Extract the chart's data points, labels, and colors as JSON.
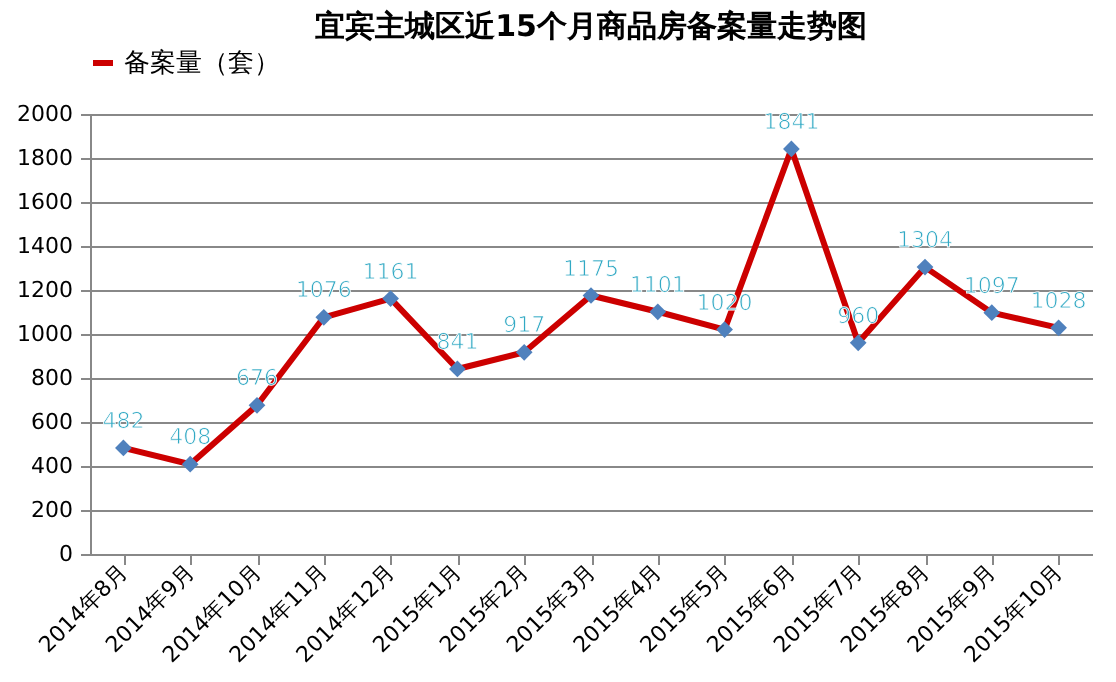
{
  "chart_data": {
    "type": "line",
    "title": "宜宾主城区近15个月商品房备案量走势图",
    "categories": [
      "2014年8月",
      "2014年9月",
      "2014年10月",
      "2014年11月",
      "2014年12月",
      "2015年1月",
      "2015年2月",
      "2015年3月",
      "2015年4月",
      "2015年5月",
      "2015年6月",
      "2015年7月",
      "2015年8月",
      "2015年9月",
      "2015年10月"
    ],
    "series": [
      {
        "name": "备案量（套）",
        "color": "#cc0000",
        "colors": [
          "#4f81bd",
          "#4f81bd",
          "#4f81bd",
          "#4f81bd",
          "#4f81bd",
          "#4f81bd",
          "#4f81bd",
          "#4f81bd",
          "#4f81bd",
          "#4f81bd",
          "#4f81bd",
          "#4f81bd",
          "#4f81bd",
          "#4f81bd",
          "#4f81bd"
        ],
        "values": [
          482,
          408,
          676,
          1076,
          1161,
          841,
          917,
          1175,
          1101,
          1020,
          1841,
          960,
          1304,
          1097,
          1028
        ]
      }
    ],
    "ylim": [
      0,
      2000
    ],
    "yticks": [
      0,
      200,
      400,
      600,
      800,
      1000,
      1200,
      1400,
      1600,
      1800,
      2000
    ],
    "grid": "y",
    "legend": "top",
    "marker": "diamond",
    "line_style": "solid",
    "data_labels": true
  }
}
